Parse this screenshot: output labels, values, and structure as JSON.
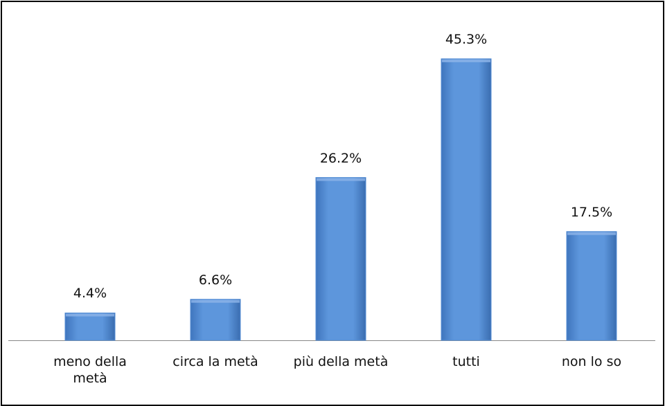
{
  "chart_data": {
    "type": "bar",
    "categories": [
      "meno della metà",
      "circa la metà",
      "più della metà",
      "tutti",
      "non lo so"
    ],
    "values": [
      4.4,
      6.6,
      26.2,
      45.3,
      17.5
    ],
    "value_labels": [
      "4.4%",
      "6.6%",
      "26.2%",
      "45.3%",
      "17.5%"
    ],
    "color": "#558ed5"
  }
}
